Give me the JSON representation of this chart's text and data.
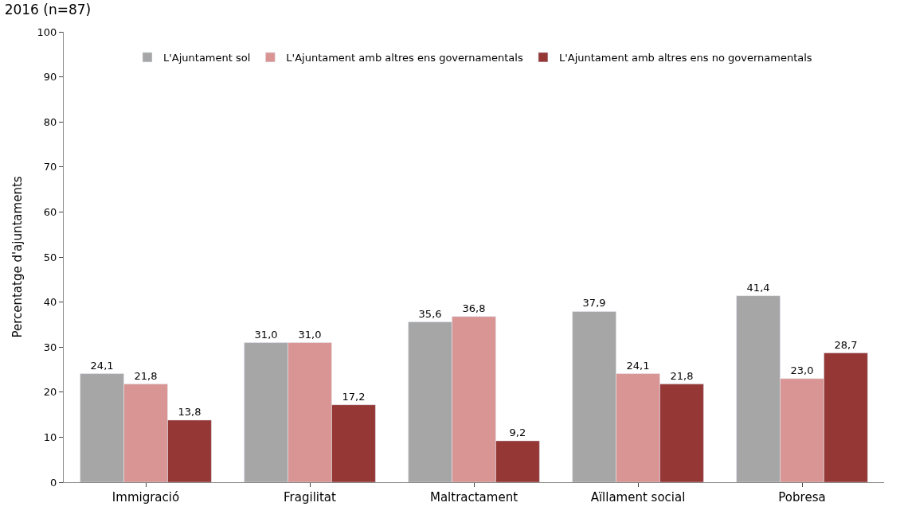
{
  "chart_data": {
    "type": "bar",
    "title": "2016 (n=87)",
    "ylabel": "Percentatge d'ajuntaments",
    "categories": [
      "Immigració",
      "Fragilitat",
      "Maltractament",
      "Aïllament social",
      "Pobresa"
    ],
    "series": [
      {
        "name": "L'Ajuntament sol",
        "color": "#a6a6a6",
        "values": [
          24.1,
          31.0,
          35.6,
          37.9,
          41.4
        ],
        "value_labels": [
          "24,1",
          "31,0",
          "35,6",
          "37,9",
          "41,4"
        ]
      },
      {
        "name": "L'Ajuntament amb altres ens governamentals",
        "color": "#d99594",
        "values": [
          21.8,
          31.0,
          36.8,
          24.1,
          23.0
        ],
        "value_labels": [
          "21,8",
          "31,0",
          "36,8",
          "24,1",
          "23,0"
        ]
      },
      {
        "name": "L'Ajuntament amb altres ens no governamentals",
        "color": "#953735",
        "values": [
          13.8,
          17.2,
          9.2,
          21.8,
          28.7
        ],
        "value_labels": [
          "13,8",
          "17,2",
          "9,2",
          "21,8",
          "28,7"
        ]
      }
    ],
    "ylim": [
      0,
      100
    ],
    "yticks": [
      0,
      10,
      20,
      30,
      40,
      50,
      60,
      70,
      80,
      90,
      100
    ],
    "legend": "top"
  }
}
